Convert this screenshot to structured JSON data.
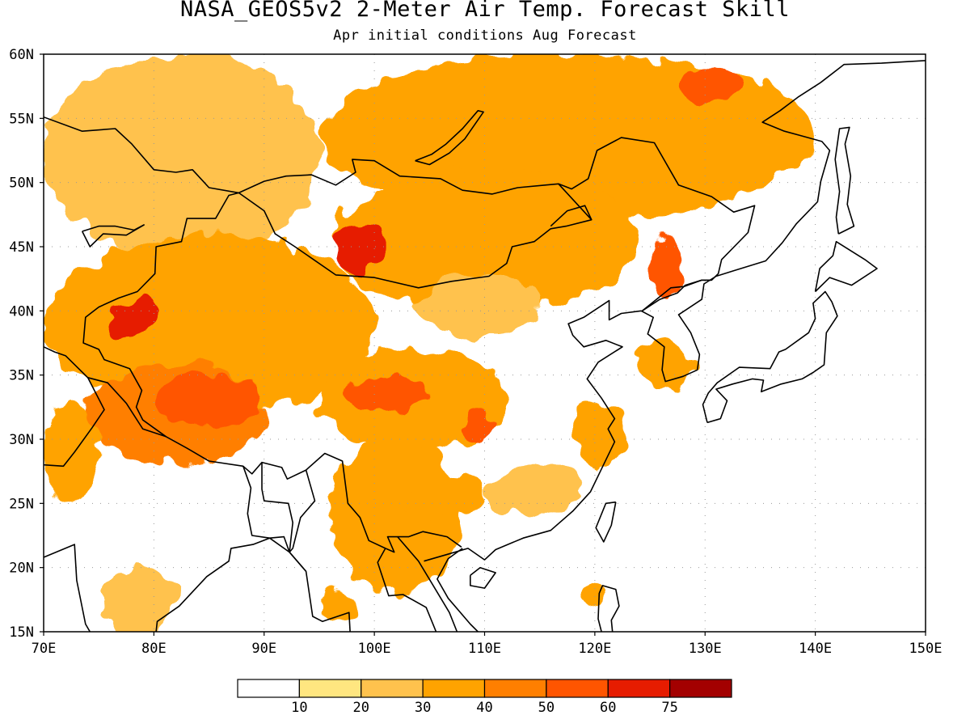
{
  "title": "NASA_GEOS5v2 2-Meter Air Temp. Forecast Skill",
  "subtitle": "Apr initial conditions  Aug Forecast",
  "colors": {
    "levels": [
      "#ffffff",
      "#ffe680",
      "#ffc24d",
      "#ffa300",
      "#ff7f00",
      "#ff5500",
      "#e61c00",
      "#a30000"
    ],
    "coast": "#000000",
    "grid": "#999999"
  },
  "map": {
    "lon_range": [
      70,
      150
    ],
    "lat_range": [
      15,
      60
    ],
    "lon_ticks": [
      {
        "v": 70,
        "label": "70E"
      },
      {
        "v": 80,
        "label": "80E"
      },
      {
        "v": 90,
        "label": "90E"
      },
      {
        "v": 100,
        "label": "100E"
      },
      {
        "v": 110,
        "label": "110E"
      },
      {
        "v": 120,
        "label": "120E"
      },
      {
        "v": 130,
        "label": "130E"
      },
      {
        "v": 140,
        "label": "140E"
      },
      {
        "v": 150,
        "label": "150E"
      }
    ],
    "lat_ticks": [
      {
        "v": 15,
        "label": "15N"
      },
      {
        "v": 20,
        "label": "20N"
      },
      {
        "v": 25,
        "label": "25N"
      },
      {
        "v": 30,
        "label": "30N"
      },
      {
        "v": 35,
        "label": "35N"
      },
      {
        "v": 40,
        "label": "40N"
      },
      {
        "v": 45,
        "label": "45N"
      },
      {
        "v": 50,
        "label": "50N"
      },
      {
        "v": 55,
        "label": "55N"
      },
      {
        "v": 60,
        "label": "60N"
      }
    ]
  },
  "colorbar": {
    "labels": [
      "10",
      "20",
      "30",
      "40",
      "50",
      "60",
      "75"
    ]
  },
  "chart_data": {
    "type": "heatmap",
    "variable": "2-Meter Air Temp. Forecast Skill",
    "bins": [
      [
        0,
        10
      ],
      [
        10,
        20
      ],
      [
        20,
        30
      ],
      [
        30,
        40
      ],
      [
        40,
        50
      ],
      [
        50,
        60
      ],
      [
        60,
        75
      ],
      [
        75,
        100
      ]
    ],
    "regions": [
      {
        "shape": "blob",
        "lon": [
          70,
          95
        ],
        "lat": [
          44,
          60
        ],
        "value": 25
      },
      {
        "shape": "blob",
        "lon": [
          95,
          140
        ],
        "lat": [
          47,
          60
        ],
        "value": 35
      },
      {
        "shape": "blob",
        "lon": [
          96,
          124
        ],
        "lat": [
          40,
          51
        ],
        "value": 38
      },
      {
        "shape": "blob",
        "lon": [
          104,
          115
        ],
        "lat": [
          38,
          43
        ],
        "value": 22
      },
      {
        "shape": "blob",
        "lon": [
          70,
          100
        ],
        "lat": [
          32,
          46
        ],
        "value": 36
      },
      {
        "shape": "blob",
        "lon": [
          74,
          90
        ],
        "lat": [
          28,
          36
        ],
        "value": 42
      },
      {
        "shape": "blob",
        "lon": [
          95,
          112
        ],
        "lat": [
          29,
          37
        ],
        "value": 33
      },
      {
        "shape": "blob",
        "lon": [
          96,
          108
        ],
        "lat": [
          18,
          30
        ],
        "value": 32
      },
      {
        "shape": "blob",
        "lon": [
          110,
          119
        ],
        "lat": [
          24,
          28
        ],
        "value": 22
      },
      {
        "shape": "blob",
        "lon": [
          118,
          123
        ],
        "lat": [
          28,
          33
        ],
        "value": 32
      },
      {
        "shape": "blob",
        "lon": [
          70,
          75
        ],
        "lat": [
          25,
          33
        ],
        "value": 32
      },
      {
        "shape": "blob",
        "lon": [
          75,
          82
        ],
        "lat": [
          15,
          20
        ],
        "value": 22
      },
      {
        "shape": "blob",
        "lon": [
          124,
          129
        ],
        "lat": [
          34,
          38
        ],
        "value": 30
      },
      {
        "shape": "blob",
        "lon": [
          95,
          98
        ],
        "lat": [
          16,
          18
        ],
        "value": 30
      },
      {
        "shape": "blob",
        "lon": [
          119,
          121
        ],
        "lat": [
          17,
          19
        ],
        "value": 30
      },
      {
        "shape": "blob",
        "lon": [
          76,
          80
        ],
        "lat": [
          38,
          41
        ],
        "value": 65
      },
      {
        "shape": "blob",
        "lon": [
          80,
          90
        ],
        "lat": [
          31,
          35
        ],
        "value": 55
      },
      {
        "shape": "blob",
        "lon": [
          96,
          101
        ],
        "lat": [
          43,
          47
        ],
        "value": 62
      },
      {
        "shape": "blob",
        "lon": [
          125,
          128
        ],
        "lat": [
          41,
          46
        ],
        "value": 55
      },
      {
        "shape": "blob",
        "lon": [
          128,
          133
        ],
        "lat": [
          56,
          59
        ],
        "value": 55
      },
      {
        "shape": "blob",
        "lon": [
          97,
          105
        ],
        "lat": [
          32,
          35
        ],
        "value": 52
      },
      {
        "shape": "blob",
        "lon": [
          103,
          110
        ],
        "lat": [
          24,
          27
        ],
        "value": 30
      },
      {
        "shape": "blob",
        "lon": [
          108,
          111
        ],
        "lat": [
          30,
          32
        ],
        "value": 52
      }
    ]
  }
}
